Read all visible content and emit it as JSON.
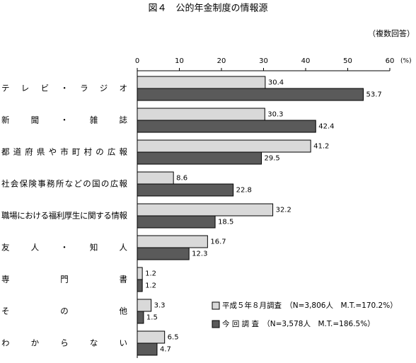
{
  "chart_data": {
    "type": "hbar",
    "title": "図４　公的年金制度の情報源",
    "note": "（複数回答）",
    "x_unit": "(%)",
    "categories": [
      "テレビ・ラジオ",
      "新聞・雑誌",
      "都道府県や市町村の広報",
      "社会保険事務所などの国の広報",
      "職場における福利厚生に関する情報",
      "友人・知人",
      "専門書",
      "その他",
      "わからない"
    ],
    "series": [
      {
        "name": "平成５年８月調査　（N=3,806人　M.T.=170.2%）",
        "color": "#d9d9d9",
        "values": [
          30.4,
          30.3,
          41.2,
          8.6,
          32.2,
          16.7,
          1.2,
          3.3,
          6.5
        ]
      },
      {
        "name": "今 回 調 査　（N=3,578人　M.T.=186.5%）",
        "color": "#5a5a5a",
        "values": [
          53.7,
          42.4,
          29.5,
          22.8,
          18.5,
          12.3,
          1.2,
          1.5,
          4.7
        ]
      }
    ],
    "xlim": [
      0,
      60
    ],
    "xticks": [
      0,
      10,
      20,
      30,
      40,
      50,
      60
    ],
    "grid": false,
    "legend": "bottom-right"
  }
}
